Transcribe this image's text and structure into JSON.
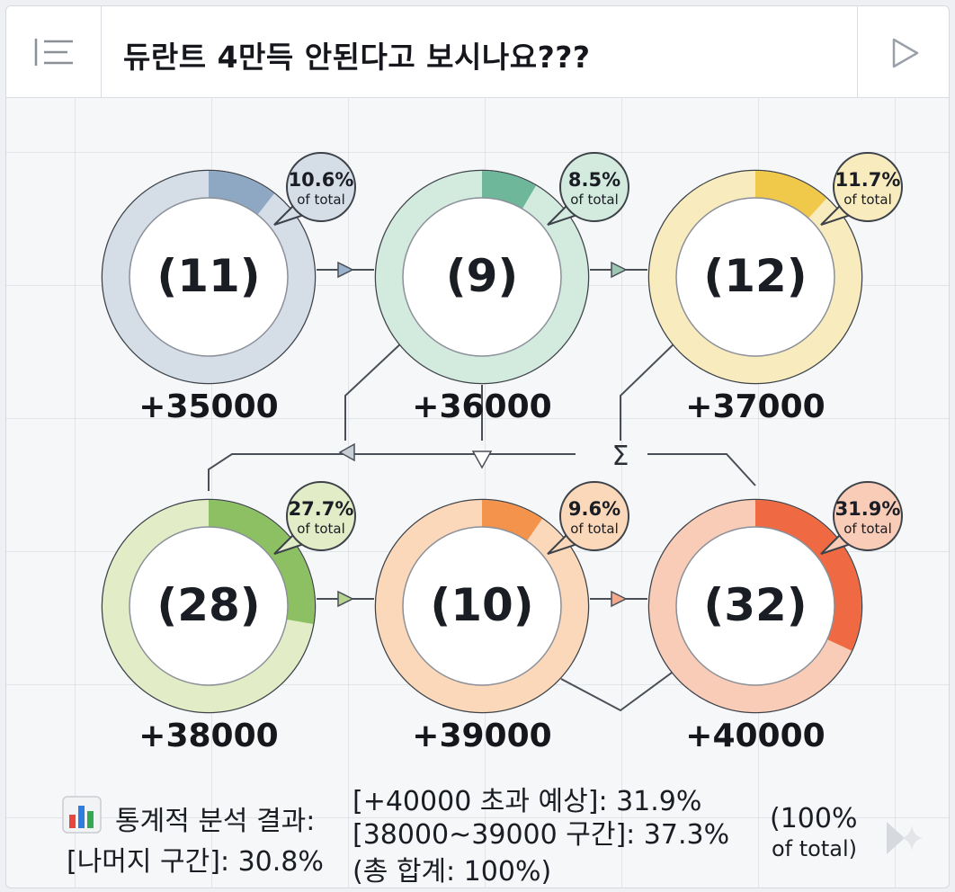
{
  "header": {
    "title": "듀란트 4만득 안된다고 보시나요???",
    "menu_icon": "list-icon",
    "play_icon": "play-icon"
  },
  "colors": {
    "blue": "#8ea8c4",
    "green": "#6fb79a",
    "yellow": "#f0c84a",
    "lightgreen": "#8cc063",
    "orange": "#f4934b",
    "red": "#ef6a42"
  },
  "chart_data": {
    "type": "donut-grid",
    "nodes": [
      {
        "value": "+35000",
        "count": "(11)",
        "percent": "10.6%",
        "percent_value": 10.6,
        "sub": "of total",
        "color": "blue",
        "track": "#d5dde7"
      },
      {
        "value": "+36000",
        "count": "(9)",
        "percent": "8.5%",
        "percent_value": 8.5,
        "sub": "of total",
        "color": "green",
        "track": "#d3eadf"
      },
      {
        "value": "+37000",
        "count": "(12)",
        "percent": "11.7%",
        "percent_value": 11.7,
        "sub": "of total",
        "color": "yellow",
        "track": "#f8ebbd"
      },
      {
        "value": "+38000",
        "count": "(28)",
        "percent": "27.7%",
        "percent_value": 27.7,
        "sub": "of total",
        "color": "lightgreen",
        "track": "#e2edc8"
      },
      {
        "value": "+39000",
        "count": "(10)",
        "percent": "9.6%",
        "percent_value": 9.6,
        "sub": "of total",
        "color": "orange",
        "track": "#fad8b9"
      },
      {
        "value": "+40000",
        "count": "(32)",
        "percent": "31.9%",
        "percent_value": 31.9,
        "sub": "of total",
        "color": "red",
        "track": "#f9ccb8"
      }
    ],
    "connector_symbols": [
      "Σ"
    ]
  },
  "footer": {
    "analysis_title": "통계적 분석 결과:",
    "rest_range": "[나머지 구간]: 30.8%",
    "over_40000": "[+40000 초과 예상]: 31.9%",
    "range_38_39": "[38000~39000 구간]: 37.3%",
    "grand_total": "(총 합계: 100%)",
    "total_big": "(100%",
    "total_small": "of total)",
    "chart_icon": "bar-chart-icon",
    "sparkle_icon": "sparkle-icon"
  }
}
